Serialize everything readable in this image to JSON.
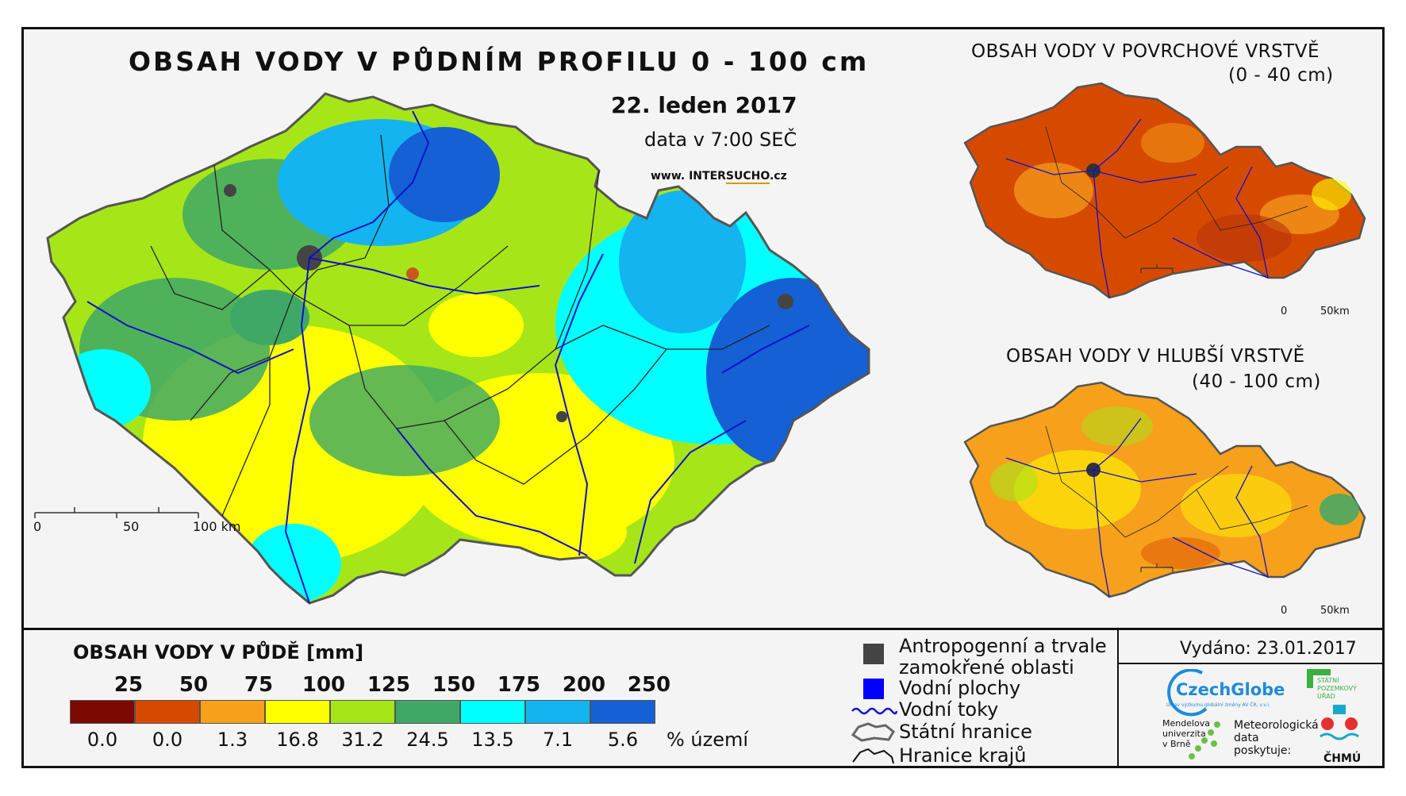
{
  "header": {
    "title": "OBSAH VODY V PŮDNÍM PROFILU 0 - 100 cm",
    "date": "22. leden 2017",
    "time": "data v 7:00 SEČ",
    "website_prefix": "www. INTER",
    "website_highlight": "SUCHO",
    "website_suffix": ".cz"
  },
  "main_map": {
    "scale_labels": [
      "0",
      "50",
      "100 km"
    ]
  },
  "inset_top": {
    "title": "OBSAH VODY V POVRCHOVÉ VRSTVĚ",
    "subtitle": "(0 - 40 cm)",
    "scale_labels": [
      "0",
      "50km"
    ]
  },
  "inset_bottom": {
    "title": "OBSAH VODY V HLUBŠÍ VRSTVĚ",
    "subtitle": "(40 - 100 cm)",
    "scale_labels": [
      "0",
      "50km"
    ]
  },
  "color_legend": {
    "title": "OBSAH VODY V PŮDĚ [mm]",
    "thresholds": [
      "25",
      "50",
      "75",
      "100",
      "125",
      "150",
      "175",
      "200",
      "250"
    ],
    "colors": [
      "#7a0a00",
      "#d64a00",
      "#f7a01c",
      "#ffff00",
      "#a6e619",
      "#3fa866",
      "#00ffff",
      "#14b4f0",
      "#1460d4"
    ],
    "percentages": [
      "0.0",
      "0.0",
      "1.3",
      "16.8",
      "31.2",
      "24.5",
      "13.5",
      "7.1",
      "5.6"
    ],
    "unit": "% území"
  },
  "symbol_legend": {
    "anthropogenic_line1": "Antropogenní a trvale",
    "anthropogenic_line2": "zamokřené oblasti",
    "water_bodies": "Vodní plochy",
    "rivers": "Vodní toky",
    "state_border": "Státní hranice",
    "region_border": "Hranice krajů"
  },
  "footer": {
    "issued": "Vydáno: 23.01.2017",
    "logo_czechglobe": "CzechGlobe",
    "logo_czechglobe_sub": "Ústav výzkumu globální změny AV ČR, v.v.i.",
    "logo_spu_line1": "STÁTNÍ",
    "logo_spu_line2": "POZEMKOVÝ",
    "logo_spu_line3": "ÚŘAD",
    "logo_mendelu_line1": "Mendelova",
    "logo_mendelu_line2": "univerzita",
    "logo_mendelu_line3": "v Brně",
    "provided_line1": "Meteorologická",
    "provided_line2": "data",
    "provided_line3": "poskytuje:",
    "logo_chmu": "ČHMÚ"
  }
}
